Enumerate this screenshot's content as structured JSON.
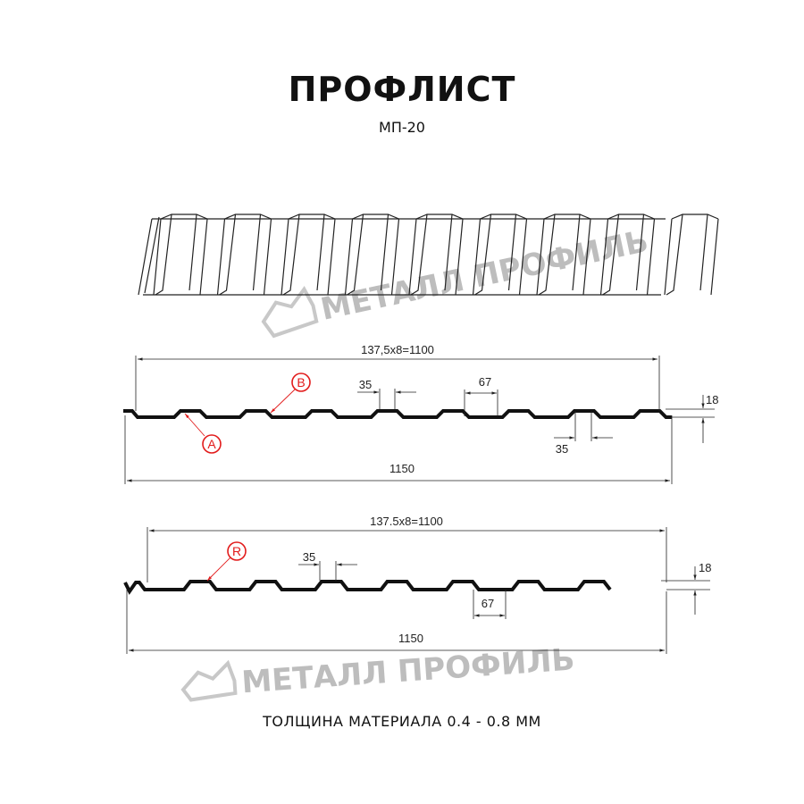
{
  "header": {
    "title": "ПРОФЛИСТ",
    "subtitle": "МП-20"
  },
  "footer": {
    "text": "ТОЛЩИНА МАТЕРИАЛА 0.4 - 0.8 ММ"
  },
  "watermark": {
    "text": "МЕТАЛЛ ПРОФИЛЬ"
  },
  "colors": {
    "profile": "#111111",
    "marker": "#e21b1b",
    "watermark": "#bdbdbd"
  },
  "profile_a": {
    "pitch_label": "137,5x8=1100",
    "width_label": "1150",
    "height_label": "18",
    "top_width_label": "35",
    "bottom_width_label": "35",
    "rib_label": "67",
    "markers": [
      "A",
      "B"
    ]
  },
  "profile_r": {
    "pitch_label": "137.5x8=1100",
    "width_label": "1150",
    "height_label": "18",
    "top_width_label": "35",
    "rib_label": "67",
    "markers": [
      "R"
    ]
  }
}
